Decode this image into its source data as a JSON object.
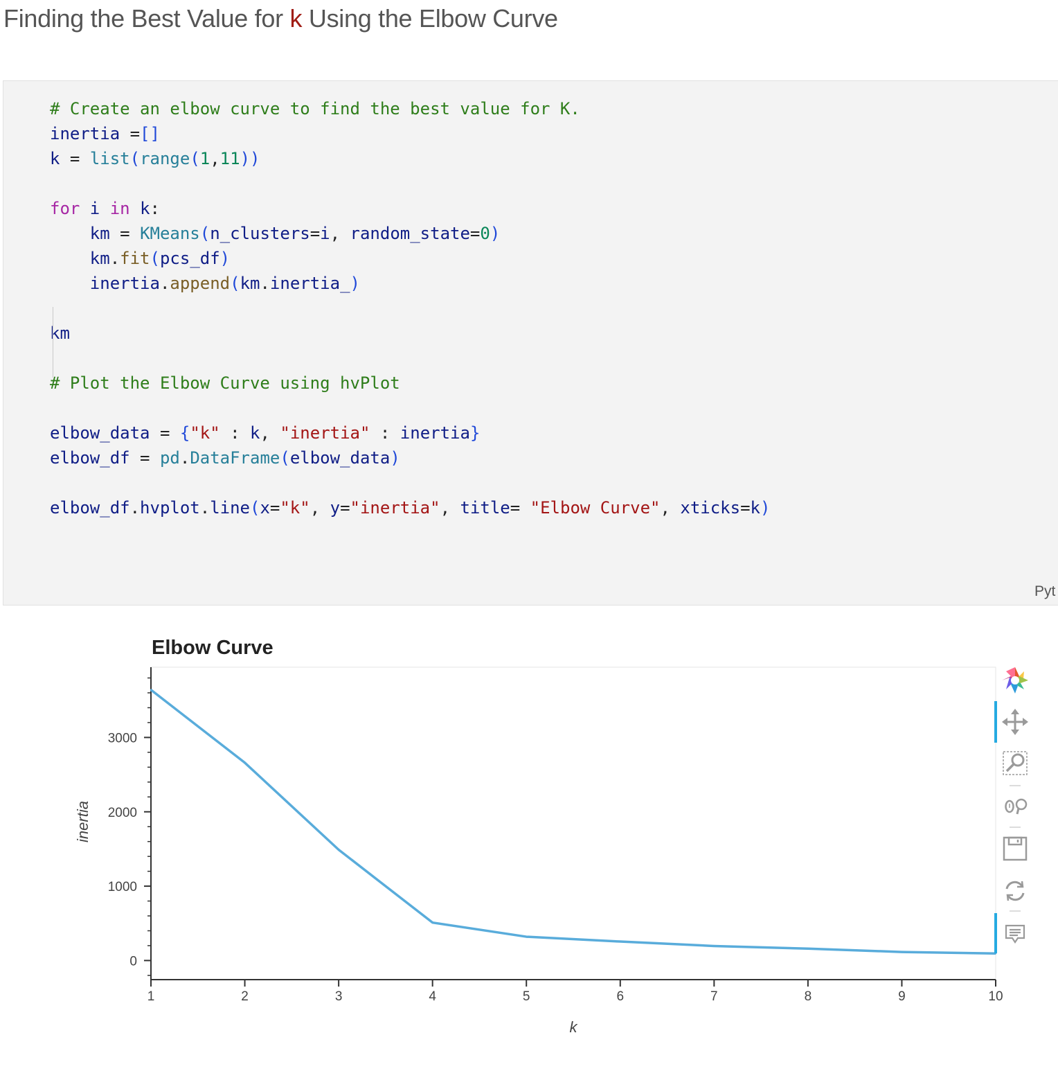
{
  "heading": {
    "before": "Finding the Best Value for ",
    "k": "k",
    "after": " Using the Elbow Curve"
  },
  "code_lines": [
    [
      [
        "c-com",
        "# Create an elbow curve to find the best value for K."
      ]
    ],
    [
      [
        "",
        "inertia "
      ],
      [
        "c-punc",
        "="
      ],
      [
        "c-br",
        "[]"
      ]
    ],
    [
      [
        "",
        "k "
      ],
      [
        "c-punc",
        "="
      ],
      [
        "",
        " "
      ],
      [
        "c-bi",
        "list"
      ],
      [
        "c-br",
        "("
      ],
      [
        "c-bi",
        "range"
      ],
      [
        "c-br",
        "("
      ],
      [
        "c-num",
        "1"
      ],
      [
        "c-punc",
        ","
      ],
      [
        "c-num",
        "11"
      ],
      [
        "c-br",
        "))"
      ]
    ],
    [],
    [
      [
        "c-kw",
        "for"
      ],
      [
        "",
        " i "
      ],
      [
        "c-kw",
        "in"
      ],
      [
        "",
        " k"
      ],
      [
        "c-punc",
        ":"
      ]
    ],
    [
      [
        "",
        "    km "
      ],
      [
        "c-punc",
        "="
      ],
      [
        "",
        " "
      ],
      [
        "c-bi",
        "KMeans"
      ],
      [
        "c-br",
        "("
      ],
      [
        "",
        "n_clusters"
      ],
      [
        "c-punc",
        "="
      ],
      [
        "",
        "i"
      ],
      [
        "c-punc",
        ","
      ],
      [
        "",
        " random_state"
      ],
      [
        "c-punc",
        "="
      ],
      [
        "c-num",
        "0"
      ],
      [
        "c-br",
        ")"
      ]
    ],
    [
      [
        "",
        "    km"
      ],
      [
        "c-punc",
        "."
      ],
      [
        "c-fn",
        "fit"
      ],
      [
        "c-br",
        "("
      ],
      [
        "",
        "pcs_df"
      ],
      [
        "c-br",
        ")"
      ]
    ],
    [
      [
        "",
        "    inertia"
      ],
      [
        "c-punc",
        "."
      ],
      [
        "c-fn",
        "append"
      ],
      [
        "c-br",
        "("
      ],
      [
        "",
        "km"
      ],
      [
        "c-punc",
        "."
      ],
      [
        "",
        "inertia_"
      ],
      [
        "c-br",
        ")"
      ]
    ],
    [],
    [
      [
        "",
        "km"
      ]
    ],
    [],
    [
      [
        "c-com",
        "# Plot the Elbow Curve using hvPlot"
      ]
    ],
    [],
    [
      [
        "",
        "elbow_data "
      ],
      [
        "c-punc",
        "="
      ],
      [
        "",
        " "
      ],
      [
        "c-br",
        "{"
      ],
      [
        "c-str",
        "\"k\""
      ],
      [
        "",
        " "
      ],
      [
        "c-punc",
        ":"
      ],
      [
        "",
        " k"
      ],
      [
        "c-punc",
        ","
      ],
      [
        "",
        " "
      ],
      [
        "c-str",
        "\"inertia\""
      ],
      [
        "",
        " "
      ],
      [
        "c-punc",
        ":"
      ],
      [
        "",
        " inertia"
      ],
      [
        "c-br",
        "}"
      ]
    ],
    [
      [
        "",
        "elbow_df "
      ],
      [
        "c-punc",
        "="
      ],
      [
        "",
        " "
      ],
      [
        "c-bi",
        "pd"
      ],
      [
        "c-punc",
        "."
      ],
      [
        "c-bi",
        "DataFrame"
      ],
      [
        "c-br",
        "("
      ],
      [
        "",
        "elbow_data"
      ],
      [
        "c-br",
        ")"
      ]
    ],
    [],
    [
      [
        "",
        "elbow_df"
      ],
      [
        "c-punc",
        "."
      ],
      [
        "",
        "hvplot"
      ],
      [
        "c-punc",
        "."
      ],
      [
        "",
        "line"
      ],
      [
        "c-br",
        "("
      ],
      [
        "",
        "x"
      ],
      [
        "c-punc",
        "="
      ],
      [
        "c-str",
        "\"k\""
      ],
      [
        "c-punc",
        ","
      ],
      [
        "",
        " y"
      ],
      [
        "c-punc",
        "="
      ],
      [
        "c-str",
        "\"inertia\""
      ],
      [
        "c-punc",
        ","
      ],
      [
        "",
        " title"
      ],
      [
        "c-punc",
        "="
      ],
      [
        "",
        " "
      ],
      [
        "c-str",
        "\"Elbow Curve\""
      ],
      [
        "c-punc",
        ","
      ],
      [
        "",
        " xticks"
      ],
      [
        "c-punc",
        "="
      ],
      [
        "",
        "k"
      ],
      [
        "c-br",
        ")"
      ]
    ]
  ],
  "cell_language": "Pyt",
  "chart_data": {
    "type": "line",
    "title": "Elbow Curve",
    "xlabel": "k",
    "ylabel": "inertia",
    "x": [
      1,
      2,
      3,
      4,
      5,
      6,
      7,
      8,
      9,
      10
    ],
    "series": [
      {
        "values": [
          3640,
          2660,
          1490,
          510,
          320,
          255,
          195,
          160,
          115,
          95
        ]
      }
    ],
    "xticks": [
      "1",
      "2",
      "3",
      "4",
      "5",
      "6",
      "7",
      "8",
      "9",
      "10"
    ],
    "yticks": [
      {
        "value": 0,
        "label": "0"
      },
      {
        "value": 1000,
        "label": "1000"
      },
      {
        "value": 2000,
        "label": "2000"
      },
      {
        "value": 3000,
        "label": "3000"
      }
    ],
    "xlim": [
      1,
      10
    ],
    "ylim": [
      -257,
      3945
    ],
    "line_color": "#59acdb",
    "grid": false
  },
  "toolbar": {
    "items": [
      "bokeh-logo-icon",
      "pan-icon",
      "box-zoom-icon",
      "wheel-zoom-icon",
      "save-icon",
      "reset-icon",
      "hover-icon"
    ],
    "active_color": "#26aae1"
  }
}
